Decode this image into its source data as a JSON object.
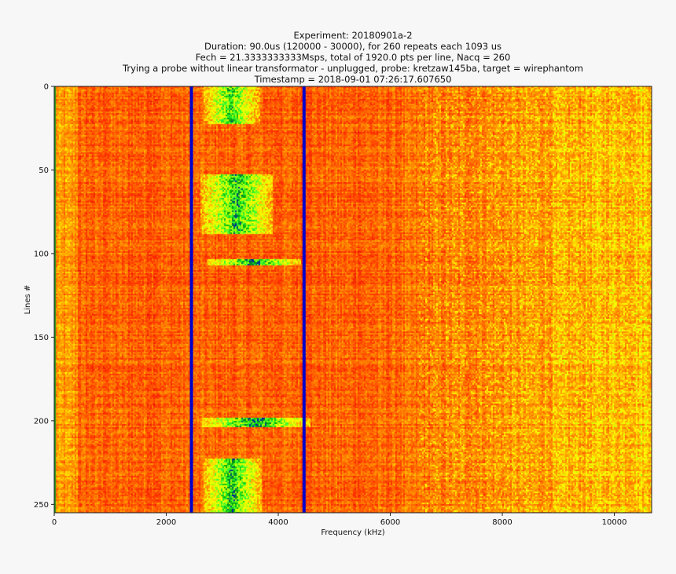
{
  "chart_data": {
    "type": "heatmap",
    "title_lines": [
      "Experiment: 20180901a-2",
      "Duration: 90.0us (120000 - 30000), for 260 repeats each 1093 us",
      "Fech = 21.3333333333Msps, total of 1920.0 pts per line, Nacq = 260",
      "Trying a probe without linear transformator - unplugged, probe: kretzaw145ba, target = wirephantom",
      "Timestamp = 2018-09-01 07:26:17.607650"
    ],
    "xlabel": "Frequency (kHz)",
    "ylabel": "Lines #",
    "xlim": [
      0,
      10666
    ],
    "ylim": [
      255,
      0
    ],
    "x_ticks": [
      0,
      2000,
      4000,
      6000,
      8000,
      10000
    ],
    "x_tick_labels": [
      "0",
      "2000",
      "4000",
      "6000",
      "8000",
      "10000"
    ],
    "y_ticks": [
      0,
      50,
      100,
      150,
      200,
      250
    ],
    "y_tick_labels": [
      "0",
      "50",
      "100",
      "150",
      "200",
      "250"
    ],
    "colormap": [
      "#0000cc",
      "#00aa00",
      "#33ff33",
      "#ccff00",
      "#ffff00",
      "#ffb000",
      "#ff7000",
      "#ff3000",
      "#e01010"
    ],
    "vertical_lines": [
      {
        "x": 2450,
        "color": "#0000cc"
      },
      {
        "x": 4460,
        "color": "#0000cc"
      }
    ],
    "bright_regions": [
      {
        "x0": 2650,
        "x1": 3650,
        "y0": 0,
        "y1": 22,
        "intensity": 0.85
      },
      {
        "x0": 2600,
        "x1": 3900,
        "y0": 52,
        "y1": 88,
        "intensity": 0.9
      },
      {
        "x0": 2700,
        "x1": 4400,
        "y0": 103,
        "y1": 107,
        "intensity": 0.95
      },
      {
        "x0": 2600,
        "x1": 4550,
        "y0": 198,
        "y1": 203,
        "intensity": 0.95
      },
      {
        "x0": 2650,
        "x1": 3700,
        "y0": 222,
        "y1": 255,
        "intensity": 0.9
      }
    ]
  }
}
